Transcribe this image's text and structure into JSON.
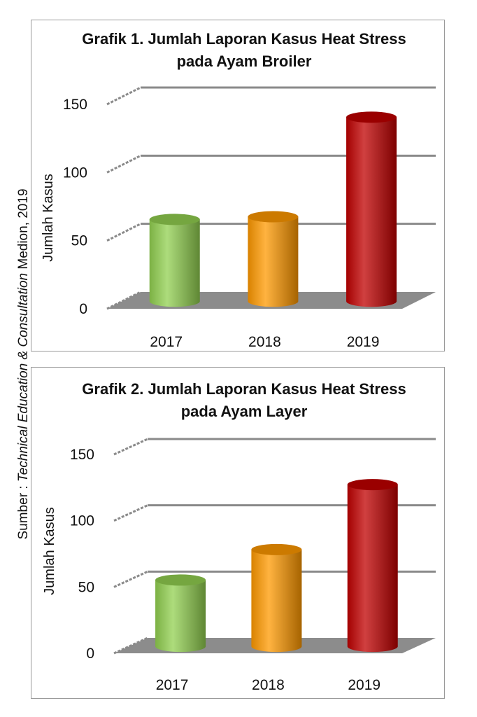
{
  "source": {
    "prefix": "Sumber : ",
    "italic": "Technical Education & Consultation",
    "suffix": " Medion, 2019"
  },
  "chart_data": [
    {
      "type": "bar",
      "title_line1": "Grafik 1. Jumlah Laporan Kasus Heat Stress",
      "title_line2": "pada Ayam Broiler",
      "ylabel": "Jumlah Kasus",
      "xlabel": "",
      "categories": [
        "2017",
        "2018",
        "2019"
      ],
      "values": [
        60,
        62,
        135
      ],
      "yticks": [
        "0",
        "50",
        "100",
        "150"
      ],
      "ylim": [
        0,
        150
      ],
      "grid": true,
      "colors": [
        "#92d050",
        "#ff9900",
        "#c00000"
      ]
    },
    {
      "type": "bar",
      "title_line1": "Grafik 2. Jumlah Laporan Kasus Heat Stress",
      "title_line2": "pada Ayam Layer",
      "ylabel": "Jumlah Kasus",
      "xlabel": "",
      "categories": [
        "2017",
        "2018",
        "2019"
      ],
      "values": [
        50,
        73,
        122
      ],
      "yticks": [
        "0",
        "50",
        "100",
        "150"
      ],
      "ylim": [
        0,
        150
      ],
      "grid": true,
      "colors": [
        "#92d050",
        "#ff9900",
        "#c00000"
      ]
    }
  ]
}
